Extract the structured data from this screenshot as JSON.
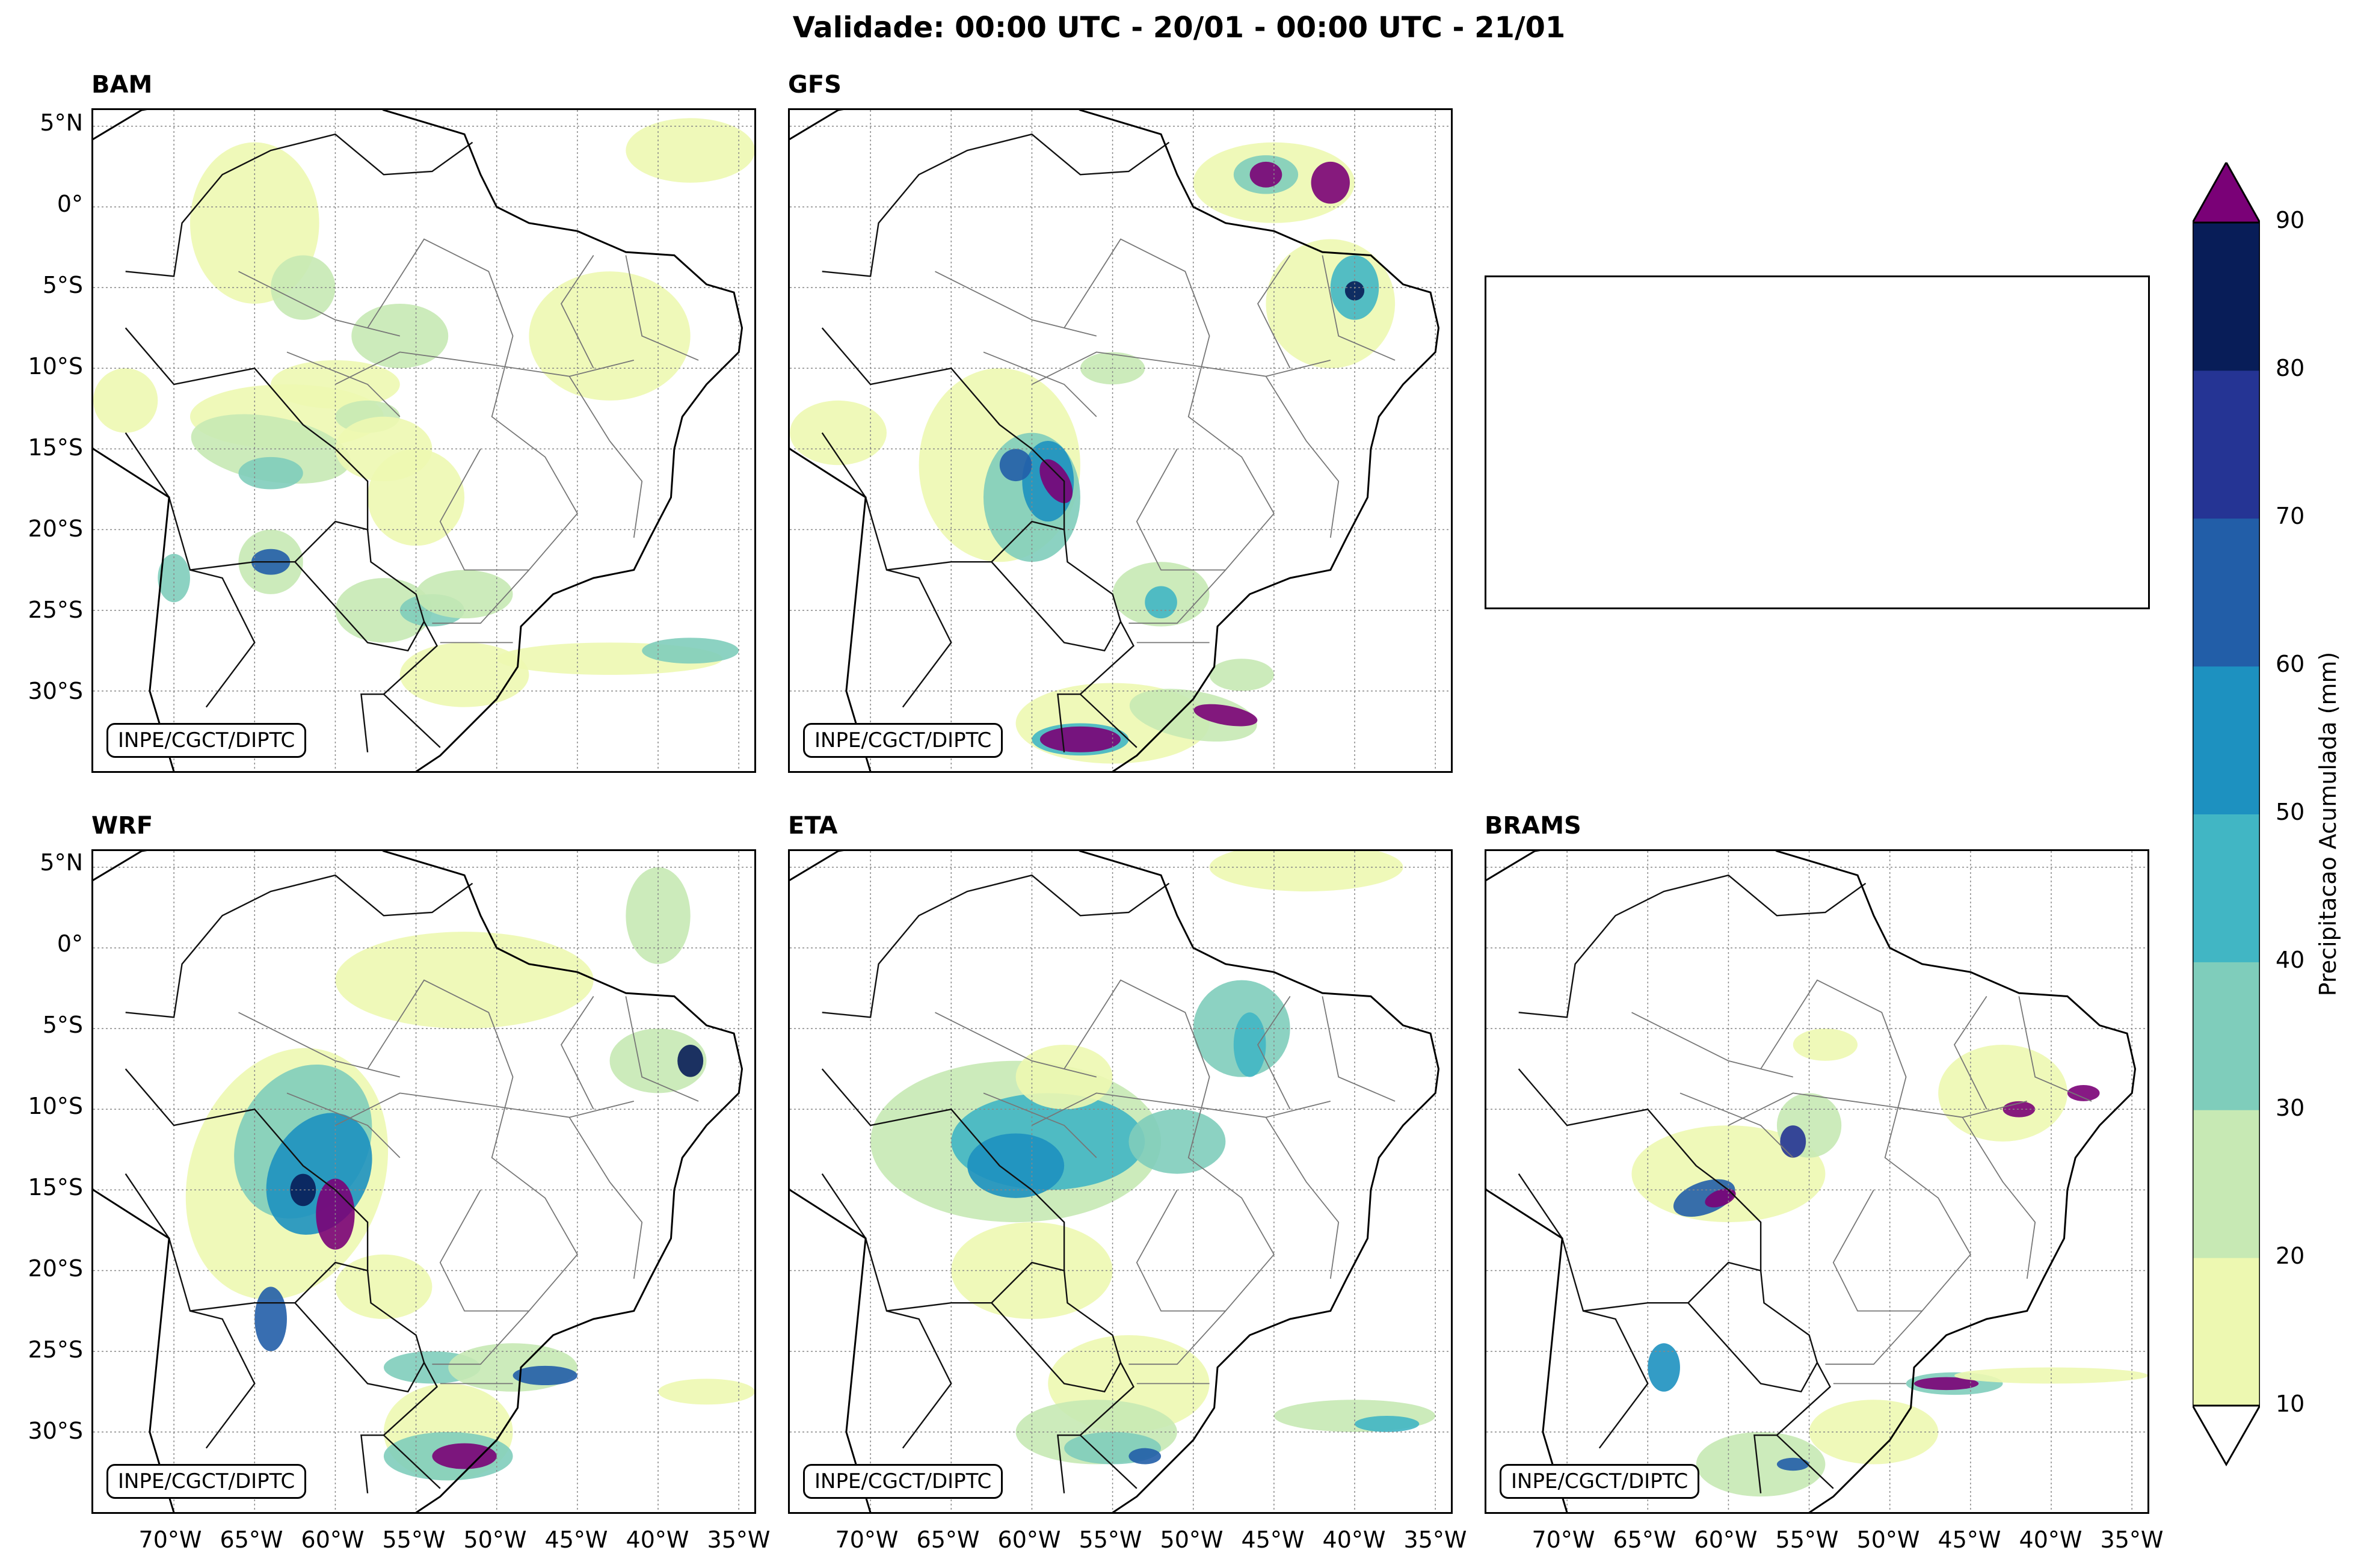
{
  "title": "Validade: 00:00 UTC - 20/01 - 00:00 UTC - 21/01",
  "panels": [
    {
      "name": "BAM",
      "credit": "INPE/CGCT/DIPTC"
    },
    {
      "name": "GFS",
      "credit": "INPE/CGCT/DIPTC"
    },
    {
      "name": "WRF",
      "credit": "INPE/CGCT/DIPTC"
    },
    {
      "name": "ETA",
      "credit": "INPE/CGCT/DIPTC"
    },
    {
      "name": "BRAMS",
      "credit": "INPE/CGCT/DIPTC"
    }
  ],
  "lat_labels": [
    "5°N",
    "0°",
    "5°S",
    "10°S",
    "15°S",
    "20°S",
    "25°S",
    "30°S"
  ],
  "lon_labels": [
    "70°W",
    "65°W",
    "60°W",
    "55°W",
    "50°W",
    "45°W",
    "40°W",
    "35°W"
  ],
  "colorbar": {
    "label": "Precipitacao Acumulada (mm)",
    "ticks": [
      "10",
      "20",
      "30",
      "40",
      "50",
      "60",
      "70",
      "80",
      "90"
    ],
    "colors": [
      "#edf8b1",
      "#c7e9b4",
      "#7fcdbb",
      "#41b6c4",
      "#1d91c0",
      "#225ea8",
      "#253494",
      "#081d58"
    ],
    "over_color": "#7a0177",
    "under_color": "#ffffff"
  }
}
